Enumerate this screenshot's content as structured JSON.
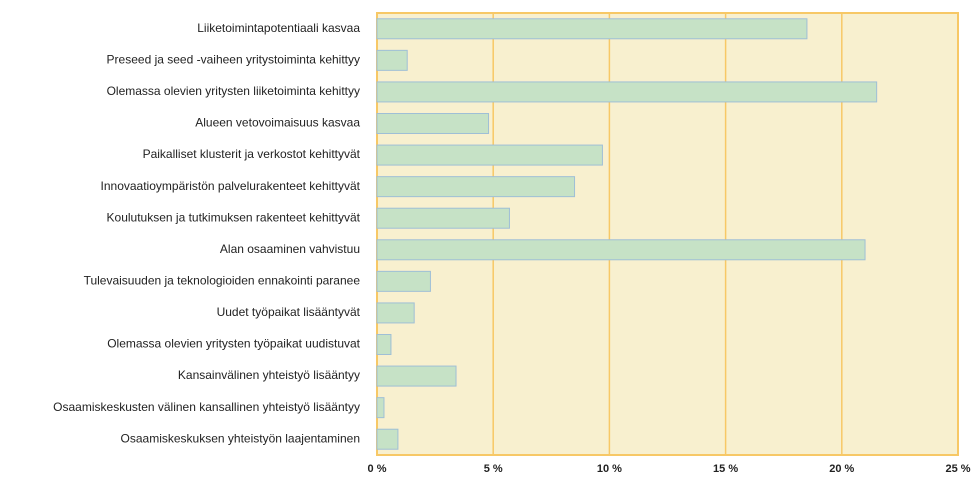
{
  "chart_data": {
    "type": "barh",
    "categories": [
      "Liiketoimintapotentiaali kasvaa",
      "Preseed ja seed -vaiheen yritystoiminta kehittyy",
      "Olemassa olevien yritysten liiketoiminta kehittyy",
      "Alueen vetovoimaisuus kasvaa",
      "Paikalliset klusterit ja verkostot kehittyvät",
      "Innovaatioympäristön palvelurakenteet kehittyvät",
      "Koulutuksen ja tutkimuksen rakenteet kehittyvät",
      "Alan osaaminen vahvistuu",
      "Tulevaisuuden ja teknologioiden ennakointi paranee",
      "Uudet työpaikat lisääntyvät",
      "Olemassa olevien yritysten työpaikat uudistuvat",
      "Kansainvälinen yhteistyö lisääntyy",
      "Osaamiskeskusten välinen kansallinen yhteistyö lisääntyy",
      "Osaamiskeskuksen yhteistyön laajentaminen"
    ],
    "values": [
      18.5,
      1.3,
      21.5,
      4.8,
      9.7,
      8.5,
      5.7,
      21.0,
      2.3,
      1.6,
      0.6,
      3.4,
      0.3,
      0.9
    ],
    "color": "#c6e2c6",
    "xlim": [
      0,
      25
    ],
    "xticks": [
      {
        "value": 0,
        "label": "0 %"
      },
      {
        "value": 5,
        "label": "5 %"
      },
      {
        "value": 10,
        "label": "10 %"
      },
      {
        "value": 15,
        "label": "15 %"
      },
      {
        "value": 20,
        "label": "20 %"
      },
      {
        "value": 25,
        "label": "25 %"
      }
    ],
    "grid": true
  }
}
